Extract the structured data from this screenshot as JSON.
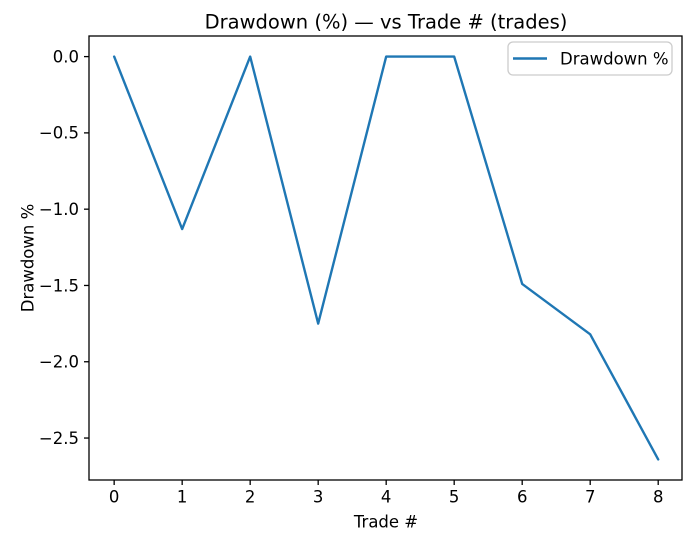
{
  "chart_data": {
    "type": "line",
    "title": "Drawdown (%) — vs Trade # (trades)",
    "xlabel": "Trade #",
    "ylabel": "Drawdown %",
    "x": [
      0,
      1,
      2,
      3,
      4,
      5,
      6,
      7,
      8
    ],
    "series": [
      {
        "name": "Drawdown %",
        "color": "#1f77b4",
        "values": [
          0.0,
          -1.13,
          0.0,
          -1.75,
          0.0,
          0.0,
          -1.49,
          -1.82,
          -2.64
        ]
      }
    ],
    "xlim": [
      -0.37,
      8.35
    ],
    "ylim": [
      -2.775,
      0.135
    ],
    "xticks": [
      0,
      1,
      2,
      3,
      4,
      5,
      6,
      7,
      8
    ],
    "xtick_labels": [
      "0",
      "1",
      "2",
      "3",
      "4",
      "5",
      "6",
      "7",
      "8"
    ],
    "yticks": [
      0.0,
      -0.5,
      -1.0,
      -1.5,
      -2.0,
      -2.5
    ],
    "ytick_labels": [
      "0.0",
      "−0.5",
      "−1.0",
      "−1.5",
      "−2.0",
      "−2.5"
    ],
    "grid": false,
    "marker": "none",
    "legend": {
      "position": "upper right",
      "entries": [
        "Drawdown %"
      ]
    }
  },
  "colors": {
    "line": "#1f77b4",
    "axis": "#000000",
    "legend_border": "#cccccc",
    "background": "#ffffff"
  }
}
